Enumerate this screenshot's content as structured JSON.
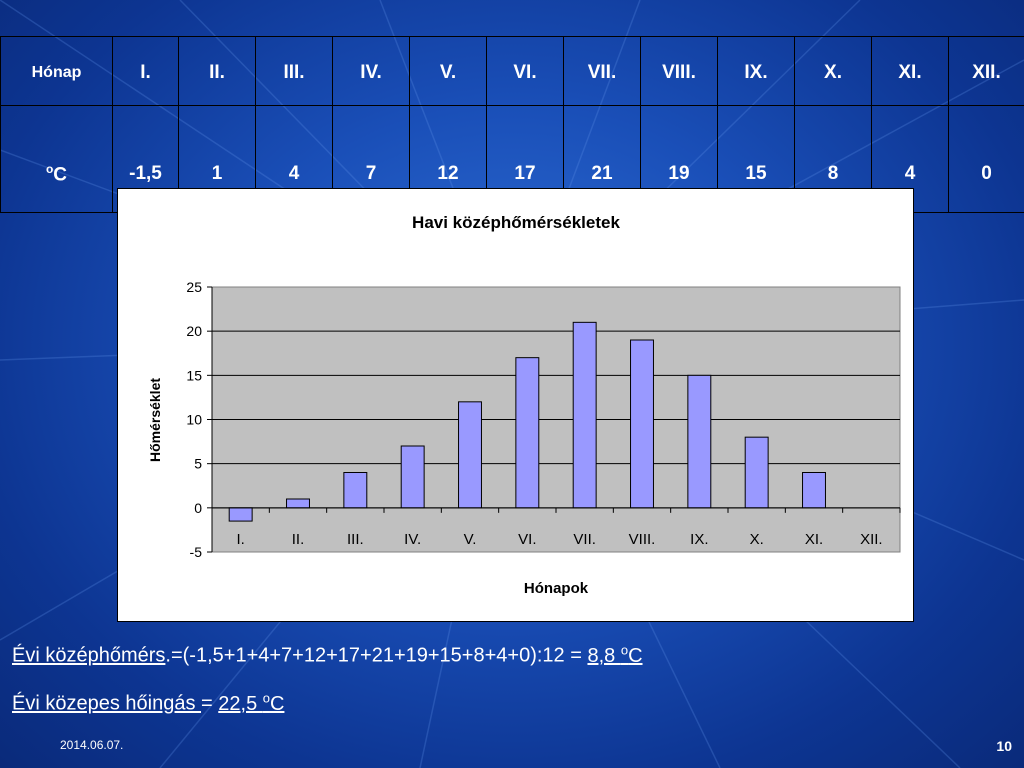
{
  "table": {
    "row1_label": "Hónap",
    "months": [
      "I.",
      "II.",
      "III.",
      "IV.",
      "V.",
      "VI.",
      "VII.",
      "VIII.",
      "IX.",
      "X.",
      "XI.",
      "XII."
    ],
    "row2_label_base": "C",
    "row2_label_sup": "o",
    "values": [
      "-1,5",
      "1",
      "4",
      "7",
      "12",
      "17",
      "21",
      "19",
      "15",
      "8",
      "4",
      "0"
    ]
  },
  "chart_data": {
    "type": "bar",
    "title": "Havi középhőmérsékletek",
    "xlabel": "Hónapok",
    "ylabel": "Hőmérséklet",
    "categories": [
      "I.",
      "II.",
      "III.",
      "IV.",
      "V.",
      "VI.",
      "VII.",
      "VIII.",
      "IX.",
      "X.",
      "XI.",
      "XII."
    ],
    "values": [
      -1.5,
      1,
      4,
      7,
      12,
      17,
      21,
      19,
      15,
      8,
      4,
      0
    ],
    "ylim": [
      -5,
      25
    ],
    "yticks": [
      -5,
      0,
      5,
      10,
      15,
      20,
      25
    ],
    "grid": true,
    "legend": "none",
    "colors": {
      "bar_fill": "#9999ff",
      "bar_stroke": "#000000",
      "plot_bg": "#c0c0c0",
      "gridline": "#000000"
    }
  },
  "summary": {
    "line1_label": "Évi középhőmérs",
    "line1_formula": ".=(-1,5+1+4+7+12+17+21+19+15+8+4+0):12 = ",
    "line1_result": "8,8 ",
    "line1_unit_sup": "o",
    "line1_unit": "C",
    "line2_label": "Évi közepes hőingás ",
    "line2_eq": "= ",
    "line2_result": "22,5 ",
    "line2_unit_sup": "o",
    "line2_unit": "C"
  },
  "footer": {
    "date": "2014.06.07.",
    "page": "10"
  },
  "colors": {
    "text": "#ffffff",
    "background": "#1a4fb8"
  }
}
